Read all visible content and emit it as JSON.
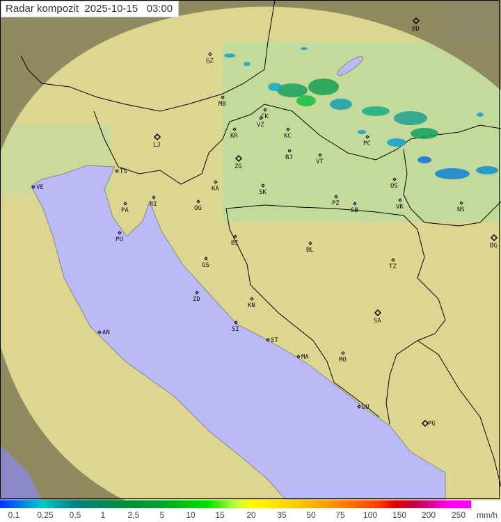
{
  "title": "Radar kompozit  2025-10-15   03:00",
  "legend": {
    "labels": [
      "0,1",
      "0,25",
      "0,5",
      "1",
      "2,5",
      "5",
      "10",
      "15",
      "20",
      "35",
      "50",
      "75",
      "100",
      "150",
      "200",
      "250"
    ],
    "unit": "mm/h"
  },
  "colors": {
    "sea": "#babaf6",
    "land": "#dcd690",
    "outside_coverage": "#8f8a60",
    "border": "#000000"
  },
  "cities": [
    "GZ",
    "BD",
    "MB",
    "CK",
    "VZ",
    "KR",
    "KC",
    "PC",
    "LJ",
    "ZG",
    "BJ",
    "VT",
    "TS",
    "RI",
    "VE",
    "PA",
    "KA",
    "SK",
    "OS",
    "PZ",
    "SB",
    "VK",
    "NS",
    "OG",
    "PU",
    "BI",
    "BL",
    "BG",
    "GS",
    "TZ",
    "ZD",
    "KN",
    "SA",
    "SI",
    "AN",
    "ST",
    "MA",
    "MO",
    "DU",
    "PG"
  ]
}
